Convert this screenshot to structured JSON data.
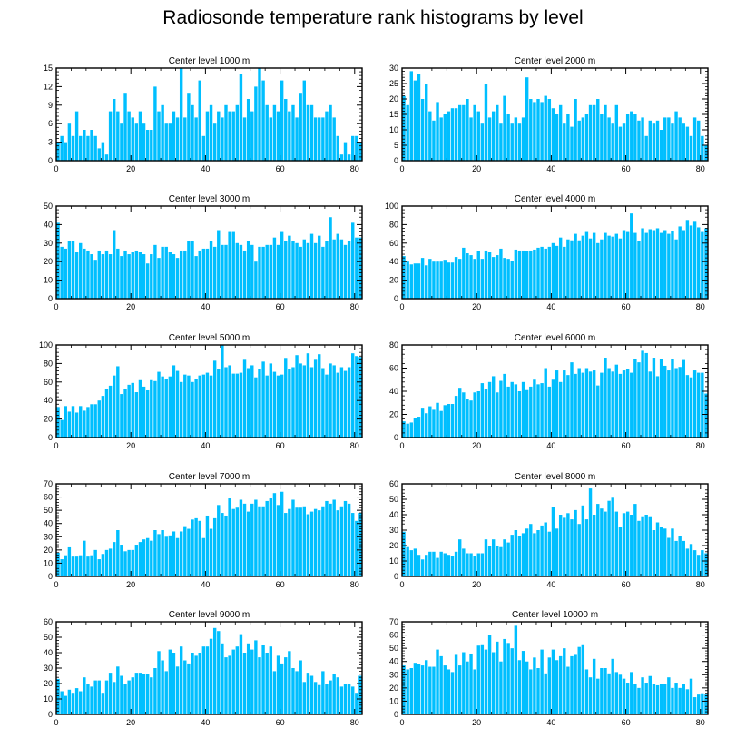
{
  "title": "Radiosonde temperature rank histograms by level",
  "colors": {
    "bar": "#00bfff",
    "axis": "#000000",
    "background": "#ffffff"
  },
  "chart_data": [
    {
      "type": "bar",
      "title": "Center level 1000 m",
      "xlabel": "",
      "ylabel": "",
      "xlim": [
        0,
        82
      ],
      "ylim": [
        0,
        15
      ],
      "xticks": [
        "0",
        "20",
        "40",
        "60",
        "80"
      ],
      "yticks": [
        "0",
        "3",
        "6",
        "9",
        "12",
        "15"
      ],
      "values": [
        3,
        4,
        3,
        6,
        4,
        8,
        4,
        5,
        4,
        5,
        4,
        2,
        3,
        1,
        8,
        10,
        8,
        6,
        11,
        8,
        7,
        6,
        8,
        6,
        5,
        5,
        12,
        8,
        9,
        6,
        6,
        8,
        7,
        15,
        7,
        11,
        9,
        7,
        13,
        4,
        8,
        9,
        6,
        8,
        7,
        9,
        8,
        8,
        9,
        14,
        7,
        10,
        8,
        12,
        15,
        13,
        9,
        7,
        9,
        8,
        13,
        10,
        8,
        9,
        7,
        11,
        13,
        9,
        9,
        7,
        7,
        7,
        8,
        9,
        7,
        4,
        1,
        3,
        1,
        4,
        4,
        3
      ]
    },
    {
      "type": "bar",
      "title": "Center level 2000 m",
      "xlabel": "",
      "ylabel": "",
      "xlim": [
        0,
        82
      ],
      "ylim": [
        0,
        30
      ],
      "xticks": [
        "0",
        "20",
        "40",
        "60",
        "80"
      ],
      "yticks": [
        "0",
        "5",
        "10",
        "15",
        "20",
        "25",
        "30"
      ],
      "values": [
        21,
        18,
        29,
        26,
        28,
        20,
        25,
        16,
        13,
        19,
        14,
        15,
        16,
        17,
        17,
        18,
        18,
        20,
        14,
        18,
        16,
        12,
        25,
        14,
        16,
        18,
        12,
        21,
        15,
        12,
        14,
        12,
        14,
        27,
        20,
        19,
        20,
        19,
        21,
        20,
        17,
        15,
        18,
        12,
        15,
        11,
        20,
        13,
        14,
        15,
        18,
        18,
        20,
        15,
        18,
        14,
        12,
        18,
        11,
        12,
        15,
        16,
        15,
        13,
        14,
        8,
        13,
        12,
        13,
        10,
        14,
        14,
        12,
        16,
        14,
        12,
        11,
        8,
        14,
        13,
        8,
        5
      ]
    },
    {
      "type": "bar",
      "title": "Center level 3000 m",
      "xlabel": "",
      "ylabel": "",
      "xlim": [
        0,
        82
      ],
      "ylim": [
        0,
        50
      ],
      "xticks": [
        "0",
        "20",
        "40",
        "60",
        "80"
      ],
      "yticks": [
        "0",
        "10",
        "20",
        "30",
        "40",
        "50"
      ],
      "values": [
        41,
        28,
        27,
        31,
        31,
        25,
        30,
        27,
        26,
        24,
        21,
        26,
        24,
        26,
        24,
        37,
        27,
        23,
        26,
        24,
        25,
        26,
        25,
        24,
        19,
        24,
        29,
        22,
        28,
        28,
        25,
        24,
        22,
        26,
        26,
        31,
        31,
        23,
        26,
        27,
        27,
        31,
        28,
        37,
        29,
        29,
        36,
        36,
        30,
        29,
        26,
        31,
        29,
        20,
        28,
        28,
        29,
        29,
        33,
        29,
        36,
        31,
        34,
        31,
        30,
        28,
        32,
        30,
        35,
        30,
        34,
        28,
        31,
        44,
        32,
        35,
        32,
        29,
        31,
        41,
        33,
        33
      ]
    },
    {
      "type": "bar",
      "title": "Center level 4000 m",
      "xlabel": "",
      "ylabel": "",
      "xlim": [
        0,
        82
      ],
      "ylim": [
        0,
        100
      ],
      "xticks": [
        "0",
        "20",
        "40",
        "60",
        "80"
      ],
      "yticks": [
        "0",
        "20",
        "40",
        "60",
        "80",
        "100"
      ],
      "values": [
        46,
        40,
        37,
        38,
        38,
        44,
        36,
        43,
        40,
        40,
        40,
        42,
        39,
        39,
        45,
        43,
        55,
        49,
        47,
        43,
        51,
        43,
        52,
        50,
        45,
        47,
        54,
        44,
        43,
        41,
        53,
        52,
        52,
        51,
        52,
        53,
        55,
        56,
        54,
        56,
        60,
        57,
        66,
        56,
        64,
        63,
        70,
        63,
        68,
        72,
        65,
        71,
        60,
        64,
        71,
        68,
        67,
        70,
        65,
        74,
        72,
        92,
        71,
        62,
        76,
        71,
        75,
        74,
        76,
        71,
        74,
        70,
        73,
        64,
        78,
        74,
        85,
        79,
        83,
        77,
        72,
        76
      ]
    },
    {
      "type": "bar",
      "title": "Center level 5000 m",
      "xlabel": "",
      "ylabel": "",
      "xlim": [
        0,
        82
      ],
      "ylim": [
        0,
        100
      ],
      "xticks": [
        "0",
        "20",
        "40",
        "60",
        "80"
      ],
      "yticks": [
        "0",
        "20",
        "40",
        "60",
        "80",
        "100"
      ],
      "values": [
        33,
        19,
        34,
        28,
        34,
        27,
        34,
        29,
        33,
        36,
        36,
        40,
        45,
        52,
        56,
        67,
        77,
        47,
        52,
        57,
        59,
        49,
        62,
        55,
        51,
        62,
        61,
        71,
        66,
        63,
        66,
        78,
        72,
        60,
        68,
        67,
        60,
        63,
        67,
        68,
        70,
        67,
        83,
        74,
        100,
        76,
        78,
        69,
        69,
        70,
        84,
        75,
        78,
        65,
        74,
        82,
        67,
        80,
        71,
        67,
        68,
        86,
        74,
        76,
        89,
        80,
        78,
        91,
        76,
        84,
        90,
        75,
        68,
        80,
        78,
        70,
        76,
        72,
        76,
        91,
        88,
        87
      ]
    },
    {
      "type": "bar",
      "title": "Center level 6000 m",
      "xlabel": "",
      "ylabel": "",
      "xlim": [
        0,
        82
      ],
      "ylim": [
        0,
        80
      ],
      "xticks": [
        "0",
        "20",
        "40",
        "60",
        "80"
      ],
      "yticks": [
        "0",
        "20",
        "40",
        "60",
        "80"
      ],
      "values": [
        14,
        12,
        13,
        17,
        18,
        25,
        21,
        27,
        24,
        30,
        23,
        28,
        29,
        29,
        36,
        43,
        39,
        33,
        32,
        39,
        40,
        47,
        42,
        48,
        53,
        39,
        49,
        55,
        44,
        48,
        46,
        40,
        48,
        41,
        44,
        50,
        46,
        47,
        60,
        44,
        50,
        58,
        48,
        58,
        54,
        65,
        55,
        60,
        56,
        60,
        57,
        58,
        45,
        56,
        69,
        60,
        57,
        63,
        55,
        58,
        59,
        56,
        68,
        65,
        75,
        73,
        57,
        69,
        53,
        68,
        62,
        58,
        68,
        60,
        61,
        67,
        54,
        52,
        58,
        56,
        56,
        38
      ]
    },
    {
      "type": "bar",
      "title": "Center level 7000 m",
      "xlabel": "",
      "ylabel": "",
      "xlim": [
        0,
        82
      ],
      "ylim": [
        0,
        70
      ],
      "xticks": [
        "0",
        "20",
        "40",
        "60",
        "80"
      ],
      "yticks": [
        "0",
        "10",
        "20",
        "30",
        "40",
        "50",
        "60",
        "70"
      ],
      "values": [
        18,
        13,
        16,
        22,
        15,
        15,
        16,
        27,
        15,
        16,
        20,
        13,
        17,
        20,
        21,
        26,
        35,
        24,
        19,
        20,
        20,
        24,
        26,
        28,
        29,
        27,
        35,
        32,
        35,
        30,
        31,
        34,
        29,
        34,
        38,
        36,
        43,
        44,
        42,
        29,
        46,
        36,
        44,
        54,
        48,
        46,
        59,
        51,
        52,
        58,
        55,
        49,
        55,
        58,
        53,
        53,
        57,
        59,
        63,
        54,
        64,
        48,
        51,
        58,
        52,
        52,
        53,
        47,
        49,
        51,
        50,
        53,
        57,
        55,
        58,
        50,
        53,
        57,
        55,
        48,
        42,
        48
      ]
    },
    {
      "type": "bar",
      "title": "Center level 8000 m",
      "xlabel": "",
      "ylabel": "",
      "xlim": [
        0,
        82
      ],
      "ylim": [
        0,
        60
      ],
      "xticks": [
        "0",
        "20",
        "40",
        "60",
        "80"
      ],
      "yticks": [
        "0",
        "10",
        "20",
        "30",
        "40",
        "50",
        "60"
      ],
      "values": [
        29,
        19,
        17,
        18,
        14,
        11,
        14,
        16,
        16,
        12,
        16,
        15,
        14,
        13,
        16,
        24,
        18,
        15,
        15,
        13,
        15,
        15,
        24,
        20,
        24,
        20,
        19,
        24,
        22,
        27,
        30,
        26,
        28,
        31,
        34,
        28,
        30,
        33,
        35,
        29,
        45,
        31,
        40,
        38,
        41,
        37,
        43,
        34,
        46,
        37,
        57,
        40,
        47,
        44,
        42,
        49,
        51,
        42,
        32,
        41,
        42,
        40,
        47,
        36,
        39,
        40,
        39,
        30,
        35,
        32,
        31,
        25,
        31,
        23,
        26,
        23,
        18,
        21,
        17,
        14,
        17,
        15
      ]
    },
    {
      "type": "bar",
      "title": "Center level 9000 m",
      "xlabel": "",
      "ylabel": "",
      "xlim": [
        0,
        82
      ],
      "ylim": [
        0,
        60
      ],
      "xticks": [
        "0",
        "20",
        "40",
        "60",
        "80"
      ],
      "yticks": [
        "0",
        "10",
        "20",
        "30",
        "40",
        "50",
        "60"
      ],
      "values": [
        23,
        15,
        12,
        16,
        14,
        17,
        15,
        24,
        20,
        18,
        22,
        22,
        14,
        22,
        27,
        21,
        31,
        25,
        20,
        22,
        24,
        27,
        27,
        26,
        26,
        24,
        30,
        41,
        35,
        28,
        42,
        40,
        31,
        44,
        35,
        33,
        40,
        38,
        40,
        44,
        44,
        49,
        56,
        54,
        46,
        37,
        38,
        42,
        44,
        52,
        40,
        46,
        42,
        48,
        37,
        45,
        40,
        44,
        28,
        38,
        33,
        37,
        41,
        30,
        28,
        35,
        21,
        27,
        25,
        21,
        19,
        28,
        20,
        22,
        26,
        24,
        18,
        20,
        20,
        18,
        14,
        25
      ]
    },
    {
      "type": "bar",
      "title": "Center level 10000 m",
      "xlabel": "",
      "ylabel": "",
      "xlim": [
        0,
        82
      ],
      "ylim": [
        0,
        70
      ],
      "xticks": [
        "0",
        "20",
        "40",
        "60",
        "80"
      ],
      "yticks": [
        "0",
        "10",
        "20",
        "30",
        "40",
        "50",
        "60",
        "70"
      ],
      "values": [
        37,
        34,
        35,
        39,
        38,
        37,
        41,
        36,
        36,
        49,
        44,
        37,
        34,
        32,
        45,
        37,
        47,
        40,
        46,
        34,
        52,
        53,
        49,
        60,
        47,
        55,
        40,
        57,
        54,
        50,
        67,
        41,
        48,
        40,
        34,
        43,
        35,
        49,
        31,
        43,
        49,
        41,
        44,
        50,
        36,
        44,
        45,
        51,
        53,
        34,
        28,
        42,
        27,
        35,
        35,
        31,
        42,
        32,
        30,
        27,
        24,
        32,
        23,
        20,
        28,
        24,
        29,
        23,
        22,
        23,
        23,
        28,
        20,
        24,
        20,
        23,
        19,
        27,
        13,
        15,
        16,
        15
      ]
    }
  ]
}
